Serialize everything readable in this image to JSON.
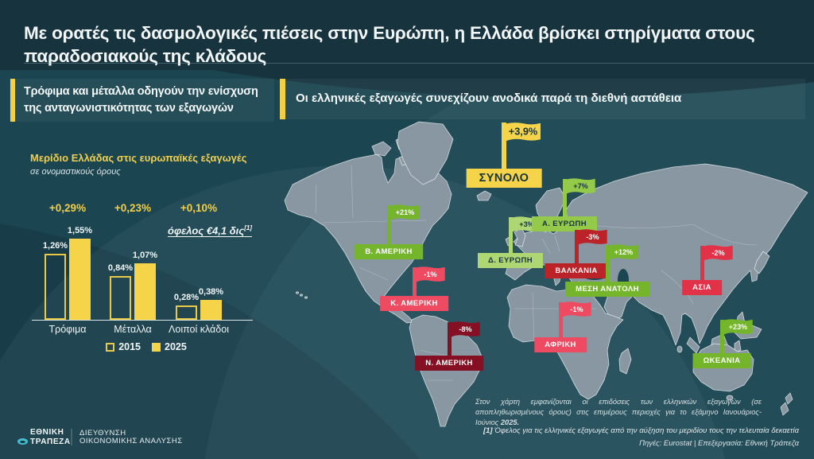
{
  "page": {
    "title": "Με ορατές τις δασμολογικές πιέσεις στην Ευρώπη, η Ελλάδα βρίσκει στηρίγματα στους παραδοσιακούς της κλάδους"
  },
  "left_panel": {
    "header": "Τρόφιμα και μέταλλα οδηγούν την ενίσχυση της ανταγωνιστικότητας των εξαγωγών"
  },
  "right_panel": {
    "header": "Οι ελληνικές εξαγωγές συνεχίζουν ανοδικά παρά τη διεθνή αστάθεια"
  },
  "chart_data": [
    {
      "type": "bar",
      "title": "Μερίδιο Ελλάδας στις ευρωπαϊκές εξαγωγές",
      "subtitle": "σε ονομαστικούς όρους",
      "categories": [
        "Τρόφιμα",
        "Μέταλλα",
        "Λοιποί κλάδοι"
      ],
      "series": [
        {
          "name": "2015",
          "style": "outline",
          "values": [
            1.26,
            0.84,
            0.28
          ],
          "labels": [
            "1,26%",
            "0,84%",
            "0,28%"
          ]
        },
        {
          "name": "2025",
          "style": "solid",
          "values": [
            1.55,
            1.07,
            0.38
          ],
          "labels": [
            "1,55%",
            "1,07%",
            "0,38%"
          ]
        }
      ],
      "deltas": [
        "+0,29%",
        "+0,23%",
        "+0,10%"
      ],
      "annotation": {
        "text": "όφελος €4,1 δις",
        "sup": "[1]"
      },
      "unit": "%",
      "ylim": [
        0,
        1.7
      ],
      "grid": false,
      "legend_position": "bottom"
    },
    {
      "type": "map",
      "total": {
        "label": "ΣΥΝΟΛΟ",
        "value": "+3,9%",
        "color": "#f5d44a",
        "text_color": "#17333e",
        "x": 634,
        "flag_top": 152,
        "label_top": 212
      },
      "regions": [
        {
          "label": "Β. ΑΜΕΡΙΚΗ",
          "value": "+21%",
          "color": "#74b52c",
          "text_color": "#ffffff",
          "x": 489,
          "flag_top": 256,
          "label_top": 307
        },
        {
          "label": "Κ. ΑΜΕΡΙΚΗ",
          "value": "-1%",
          "color": "#ee4a62",
          "text_color": "#ffffff",
          "x": 521,
          "flag_top": 334,
          "label_top": 372
        },
        {
          "label": "Ν. ΑΜΕΡΙΚΗ",
          "value": "-8%",
          "color": "#850f23",
          "text_color": "#ffffff",
          "x": 565,
          "flag_top": 403,
          "label_top": 447
        },
        {
          "label": "Δ. ΕΥΡΩΠΗ",
          "value": "+3%",
          "color": "#aed672",
          "text_color": "#17333e",
          "x": 642,
          "flag_top": 271,
          "label_top": 318
        },
        {
          "label": "Α. ΕΥΡΩΠΗ",
          "value": "+7%",
          "color": "#93ca49",
          "text_color": "#17333e",
          "x": 710,
          "flag_top": 223,
          "label_top": 272
        },
        {
          "label": "ΒΑΛΚΑΝΙΑ",
          "value": "-3%",
          "color": "#bb2328",
          "text_color": "#ffffff",
          "x": 725,
          "flag_top": 287,
          "label_top": 331
        },
        {
          "label": "ΜΕΣΗ ΑΝΑΤΟΛΗ",
          "value": "+12%",
          "color": "#74b52c",
          "text_color": "#ffffff",
          "x": 764,
          "flag_top": 306,
          "label_top": 354
        },
        {
          "label": "ΑΦΡΙΚΗ",
          "value": "-1%",
          "color": "#ee4a62",
          "text_color": "#ffffff",
          "x": 705,
          "flag_top": 378,
          "label_top": 424
        },
        {
          "label": "ΑΣΙΑ",
          "value": "-2%",
          "color": "#e23247",
          "text_color": "#ffffff",
          "x": 883,
          "flag_top": 307,
          "label_top": 352
        },
        {
          "label": "ΩΚΕΑΝΙΑ",
          "value": "+23%",
          "color": "#74b52c",
          "text_color": "#ffffff",
          "x": 908,
          "flag_top": 400,
          "label_top": 444
        }
      ]
    }
  ],
  "map_note": {
    "text": "Στον χάρτη εμφανίζονται οι επιδόσεις των ελληνικών εξαγωγών (σε αποπληθωρισμένους όρους) στις επιμέρους περιοχές για το εξάμηνο Ιανουάριος-Ιούνιος ",
    "bold": "2025."
  },
  "footer": {
    "footnote_marker": "[1]",
    "footnote": " Όφελος για τις ελληνικές εξαγωγές από την αύξηση του μεριδίου τους την τελευταία δεκαετία",
    "sources": "Πηγές: Eurostat | Επεξεργασία: Εθνική Τράπεζα",
    "logo_line1": "ΕΘΝΙΚΗ",
    "logo_line2": "ΤΡΑΠΕΖΑ",
    "dept_line1": "ΔΙΕΥΘΥΝΣΗ",
    "dept_line2": "ΟΙΚΟΝΟΜΙΚΗΣ ΑΝΑΛΥΣΗΣ"
  },
  "colors": {
    "title_band": "#16333e",
    "content_bg": "#1b4551",
    "accent_yellow": "#f2cf47",
    "bar_yellow": "#f5d44a",
    "green_strong": "#74b52c",
    "green_light": "#aed672",
    "pink": "#ee4a62",
    "red": "#e23247",
    "dark_red": "#bb2328",
    "maroon": "#850f23",
    "land_gray": "#8897a1"
  }
}
